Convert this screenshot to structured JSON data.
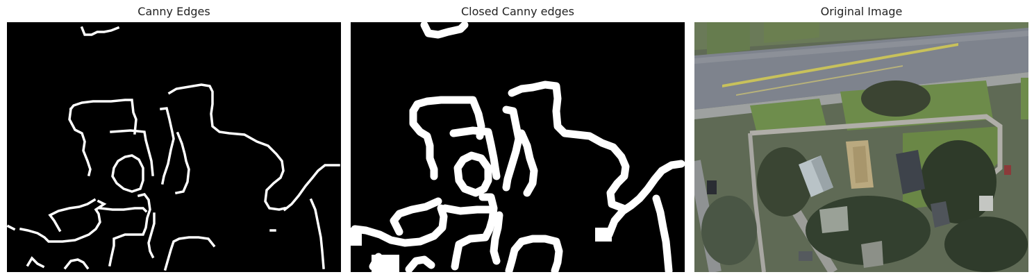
{
  "panels": [
    {
      "title": "Canny Edges"
    },
    {
      "title": "Closed Canny edges"
    },
    {
      "title": "Original Image"
    }
  ],
  "colors": {
    "edge_background": "#000000",
    "edge_foreground": "#ffffff",
    "road": "#7f838e",
    "road_marking": "#c9c25a",
    "grass": "#6f8f4e",
    "trees": "#2d3a28",
    "roof_light": "#b9c2c6",
    "roof_tan": "#b8a77e",
    "roof_dark": "#3d4148",
    "sidewalk": "#a9a9a6"
  }
}
